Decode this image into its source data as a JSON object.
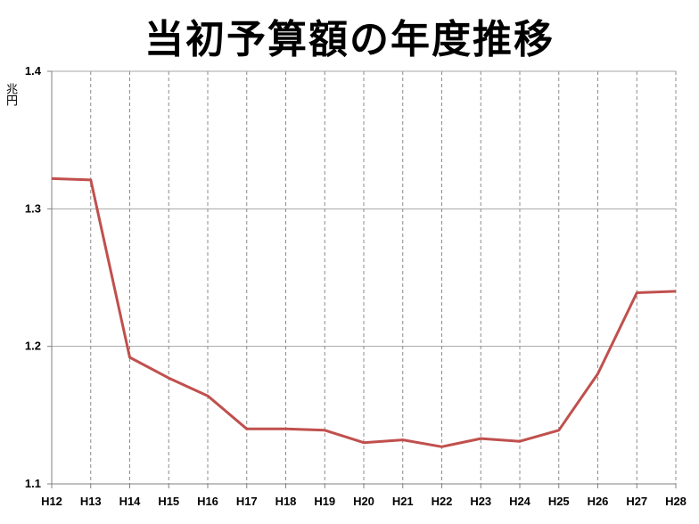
{
  "chart_data": {
    "type": "line",
    "title": "当初予算額の年度推移",
    "ylabel": "兆円",
    "xlabel": "",
    "categories": [
      "H12",
      "H13",
      "H14",
      "H15",
      "H16",
      "H17",
      "H18",
      "H19",
      "H20",
      "H21",
      "H22",
      "H23",
      "H24",
      "H25",
      "H26",
      "H27",
      "H28"
    ],
    "series": [
      {
        "values": [
          1.322,
          1.321,
          1.192,
          1.177,
          1.164,
          1.14,
          1.14,
          1.139,
          1.13,
          1.132,
          1.127,
          1.133,
          1.131,
          1.139,
          1.18,
          1.239,
          1.24
        ]
      }
    ],
    "ylim": [
      1.1,
      1.4
    ],
    "yticks": [
      "1.1",
      "1.2",
      "1.3",
      "1.4"
    ],
    "grid": {
      "y_major": "solid",
      "x_major": "dashed"
    },
    "line_color": "#c0504d"
  }
}
